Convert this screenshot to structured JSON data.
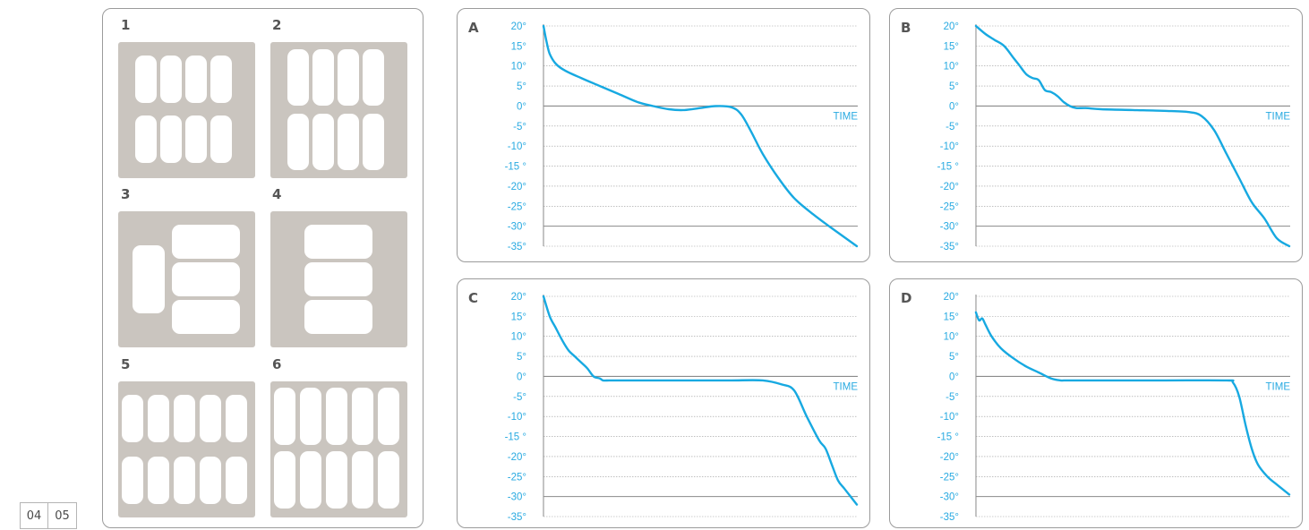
{
  "page_numbers": [
    "04",
    "05"
  ],
  "layouts": [
    {
      "label": "1"
    },
    {
      "label": "2"
    },
    {
      "label": "3"
    },
    {
      "label": "4"
    },
    {
      "label": "5"
    },
    {
      "label": "6"
    }
  ],
  "colors": {
    "curve": "#17a9e1",
    "tick_text": "#29aae1",
    "tray": "#cac5bf"
  },
  "chart_data": [
    {
      "panel": "A",
      "type": "line",
      "ytick_labels": [
        "20°",
        "15°",
        "10°",
        "5°",
        "0°",
        "-5°",
        "-10°",
        "-15 °",
        "-20°",
        "-25°",
        "-30°",
        "-35°"
      ],
      "xlabel": "TIME",
      "ylim": [
        -35,
        20
      ],
      "xlim": [
        0,
        100
      ],
      "grid": true,
      "x": [
        0,
        1,
        2,
        4,
        7,
        12,
        18,
        24,
        30,
        35,
        40,
        45,
        50,
        55,
        60,
        63,
        66,
        70,
        75,
        80,
        86,
        92,
        100
      ],
      "y": [
        20,
        16,
        13,
        10.5,
        8.8,
        7,
        5,
        3,
        1,
        0,
        -0.8,
        -1,
        -0.5,
        0,
        -0.3,
        -2,
        -6,
        -12,
        -18,
        -23,
        -27,
        -30.5,
        -35
      ]
    },
    {
      "panel": "B",
      "type": "line",
      "ytick_labels": [
        "20°",
        "15°",
        "10°",
        "5°",
        "0°",
        "-5°",
        "-10°",
        "-15 °",
        "-20°",
        "-25°",
        "-30°",
        "-35°"
      ],
      "xlabel": "TIME",
      "ylim": [
        -35,
        20
      ],
      "xlim": [
        0,
        100
      ],
      "grid": true,
      "x": [
        0,
        3,
        6,
        9,
        12,
        14,
        16,
        18,
        20,
        22,
        24,
        26,
        28,
        30,
        32,
        35,
        40,
        50,
        60,
        68,
        72,
        76,
        80,
        84,
        88,
        92,
        96,
        100
      ],
      "y": [
        20,
        18,
        16.5,
        15,
        12,
        10,
        8,
        7,
        6.5,
        4,
        3.5,
        2.5,
        1,
        0,
        -0.5,
        -0.5,
        -0.8,
        -1,
        -1.2,
        -1.5,
        -2.5,
        -6,
        -12,
        -18,
        -24,
        -28,
        -33,
        -35
      ]
    },
    {
      "panel": "C",
      "type": "line",
      "ytick_labels": [
        "20°",
        "15°",
        "10°",
        "5°",
        "0°",
        "-5°",
        "-10°",
        "-15 °",
        "-20°",
        "-25°",
        "-30°",
        "-35°"
      ],
      "xlabel": "TIME",
      "ylim": [
        -35,
        20
      ],
      "xlim": [
        0,
        100
      ],
      "grid": true,
      "x": [
        0,
        2,
        4,
        6,
        8,
        10,
        12,
        14,
        16,
        18,
        19,
        21,
        24,
        30,
        40,
        50,
        60,
        70,
        76,
        80,
        84,
        88,
        90,
        92,
        94,
        96,
        98,
        100
      ],
      "y": [
        20,
        15,
        12,
        9,
        6.5,
        5,
        3.5,
        2,
        0,
        -0.5,
        -1,
        -1,
        -1,
        -1,
        -1,
        -1,
        -1,
        -1,
        -2,
        -3.5,
        -10,
        -16,
        -18,
        -22,
        -26,
        -28,
        -30,
        -32
      ]
    },
    {
      "panel": "D",
      "type": "line",
      "ytick_labels": [
        "20°",
        "15°",
        "10°",
        "5°",
        "0°",
        "-5°",
        "-10°",
        "-15 °",
        "-20°",
        "-25°",
        "-30°",
        "-35°"
      ],
      "xlabel": "TIME",
      "ylim": [
        -35,
        20
      ],
      "xlim": [
        0,
        100
      ],
      "grid": true,
      "x": [
        0,
        1,
        2,
        3,
        5,
        8,
        12,
        16,
        20,
        24,
        27,
        28,
        30,
        40,
        60,
        80,
        82,
        84,
        86,
        88,
        90,
        93,
        96,
        100
      ],
      "y": [
        16,
        14,
        14.5,
        13,
        10,
        7,
        4.5,
        2.5,
        1,
        -0.5,
        -1,
        -1,
        -1,
        -1,
        -1,
        -1,
        -1.5,
        -5,
        -12,
        -18,
        -22,
        -25,
        -27,
        -29.5
      ]
    }
  ]
}
